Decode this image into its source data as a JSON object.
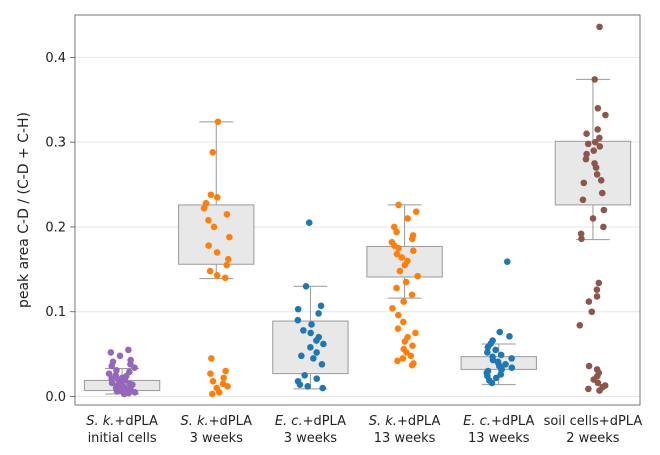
{
  "chart_data": {
    "type": "box",
    "title": "",
    "xlabel": "",
    "ylabel": "peak area C-D / (C-D + C-H)",
    "ylim": [
      -0.01,
      0.45
    ],
    "yticks": [
      "0.0",
      "0.1",
      "0.2",
      "0.3",
      "0.4"
    ],
    "ytick_values": [
      0.0,
      0.1,
      0.2,
      0.3,
      0.4
    ],
    "grid": true,
    "categories": [
      {
        "line1_italic": "S. k.",
        "line1_rest": "+dPLA",
        "line2": "initial cells"
      },
      {
        "line1_italic": "S. k.",
        "line1_rest": "+dPLA",
        "line2": "3 weeks"
      },
      {
        "line1_italic": "E. c.",
        "line1_rest": "+dPLA",
        "line2": "3 weeks"
      },
      {
        "line1_italic": "S. k.",
        "line1_rest": "+dPLA",
        "line2": "13 weeks"
      },
      {
        "line1_italic": "E. c.",
        "line1_rest": "+dPLA",
        "line2": "13 weeks"
      },
      {
        "line1_italic": "",
        "line1_rest": "soil cells+dPLA",
        "line2": "2 weeks"
      }
    ],
    "series": [
      {
        "name": "S. k.+dPLA initial cells",
        "color": "#9467bd",
        "box": {
          "whislo": 0.003,
          "q1": 0.007,
          "med": 0.011,
          "q3": 0.019,
          "whishi": 0.033
        },
        "points": [
          0.055,
          0.052,
          0.048,
          0.043,
          0.041,
          0.038,
          0.036,
          0.034,
          0.031,
          0.029,
          0.027,
          0.025,
          0.024,
          0.022,
          0.021,
          0.02,
          0.019,
          0.018,
          0.017,
          0.016,
          0.015,
          0.014,
          0.013,
          0.012,
          0.011,
          0.01,
          0.009,
          0.008,
          0.007,
          0.006,
          0.005,
          0.004,
          0.003,
          0.016,
          0.012,
          0.009
        ]
      },
      {
        "name": "S. k.+dPLA 3 weeks",
        "color": "#ff7f0e",
        "box": {
          "whislo": 0.139,
          "q1": 0.156,
          "med": 0.2,
          "q3": 0.226,
          "whishi": 0.324
        },
        "points": [
          0.324,
          0.288,
          0.238,
          0.235,
          0.228,
          0.222,
          0.215,
          0.208,
          0.2,
          0.188,
          0.178,
          0.17,
          0.162,
          0.155,
          0.148,
          0.143,
          0.14,
          0.045,
          0.03,
          0.027,
          0.022,
          0.018,
          0.015,
          0.012,
          0.01,
          0.005,
          0.003
        ]
      },
      {
        "name": "E. c.+dPLA 3 weeks",
        "color": "#1f77b4",
        "box": {
          "whislo": 0.009,
          "q1": 0.027,
          "med": 0.072,
          "q3": 0.089,
          "whishi": 0.13
        },
        "points": [
          0.205,
          0.13,
          0.107,
          0.103,
          0.098,
          0.09,
          0.085,
          0.078,
          0.075,
          0.07,
          0.066,
          0.062,
          0.058,
          0.052,
          0.048,
          0.045,
          0.038,
          0.025,
          0.021,
          0.018,
          0.014,
          0.012,
          0.01
        ]
      },
      {
        "name": "S. k.+dPLA 13 weeks",
        "color": "#ff7f0e",
        "box": {
          "whislo": 0.116,
          "q1": 0.141,
          "med": 0.166,
          "q3": 0.177,
          "whishi": 0.226
        },
        "points": [
          0.226,
          0.218,
          0.21,
          0.2,
          0.194,
          0.19,
          0.186,
          0.182,
          0.178,
          0.175,
          0.172,
          0.168,
          0.164,
          0.16,
          0.155,
          0.148,
          0.142,
          0.135,
          0.128,
          0.12,
          0.112,
          0.104,
          0.096,
          0.088,
          0.08,
          0.075,
          0.07,
          0.065,
          0.06,
          0.056,
          0.052,
          0.048,
          0.045,
          0.042,
          0.039,
          0.037
        ]
      },
      {
        "name": "E. c.+dPLA 13 weeks",
        "color": "#1f77b4",
        "box": {
          "whislo": 0.014,
          "q1": 0.032,
          "med": 0.042,
          "q3": 0.047,
          "whishi": 0.062
        },
        "points": [
          0.159,
          0.076,
          0.071,
          0.066,
          0.062,
          0.058,
          0.055,
          0.052,
          0.049,
          0.047,
          0.045,
          0.043,
          0.041,
          0.04,
          0.038,
          0.036,
          0.034,
          0.032,
          0.03,
          0.028,
          0.026,
          0.024,
          0.022,
          0.019,
          0.016
        ]
      },
      {
        "name": "soil cells+dPLA 2 weeks",
        "color": "#8c564b",
        "box": {
          "whislo": 0.185,
          "q1": 0.226,
          "med": 0.28,
          "q3": 0.301,
          "whishi": 0.374
        },
        "points": [
          0.436,
          0.374,
          0.34,
          0.332,
          0.315,
          0.31,
          0.305,
          0.3,
          0.298,
          0.295,
          0.29,
          0.286,
          0.28,
          0.275,
          0.27,
          0.262,
          0.255,
          0.252,
          0.24,
          0.232,
          0.22,
          0.21,
          0.2,
          0.192,
          0.186,
          0.134,
          0.126,
          0.118,
          0.112,
          0.1,
          0.084,
          0.036,
          0.032,
          0.028,
          0.024,
          0.02,
          0.016,
          0.013,
          0.011,
          0.009,
          0.007
        ]
      }
    ]
  }
}
